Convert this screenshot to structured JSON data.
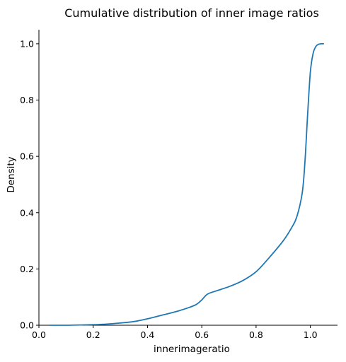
{
  "chart_data": {
    "type": "line",
    "title": "Cumulative distribution of inner image ratios",
    "xlabel": "innerimageratio",
    "ylabel": "Density",
    "xlim": [
      0.0,
      1.1
    ],
    "ylim": [
      0.0,
      1.05
    ],
    "x_ticks": [
      "0.0",
      "0.2",
      "0.4",
      "0.6",
      "0.8",
      "1.0"
    ],
    "x_tick_values": [
      0.0,
      0.2,
      0.4,
      0.6,
      0.8,
      1.0
    ],
    "y_ticks": [
      "0.0",
      "0.2",
      "0.4",
      "0.6",
      "0.8",
      "1.0"
    ],
    "y_tick_values": [
      0.0,
      0.2,
      0.4,
      0.6,
      0.8,
      1.0
    ],
    "grid": false,
    "color": "#1f77b4",
    "series": [
      {
        "x": [
          0.04,
          0.1,
          0.15,
          0.2,
          0.25,
          0.3,
          0.35,
          0.4,
          0.45,
          0.5,
          0.55,
          0.58,
          0.6,
          0.62,
          0.65,
          0.7,
          0.75,
          0.8,
          0.85,
          0.9,
          0.93,
          0.95,
          0.97,
          0.98,
          0.99,
          1.0,
          1.01,
          1.02,
          1.03,
          1.04,
          1.05
        ],
        "y": [
          0.0,
          0.0,
          0.001,
          0.002,
          0.004,
          0.008,
          0.013,
          0.023,
          0.035,
          0.047,
          0.062,
          0.074,
          0.09,
          0.11,
          0.121,
          0.137,
          0.158,
          0.19,
          0.242,
          0.3,
          0.345,
          0.385,
          0.47,
          0.58,
          0.75,
          0.9,
          0.965,
          0.99,
          0.998,
          1.0,
          1.0
        ]
      }
    ]
  }
}
